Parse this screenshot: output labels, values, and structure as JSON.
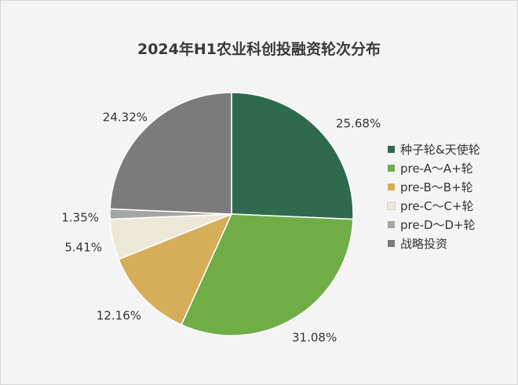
{
  "chart_data": {
    "type": "pie",
    "title": "2024年H1农业科创投融资轮次分布",
    "legend_position": "right",
    "slices": [
      {
        "name": "种子轮&天使轮",
        "value": 25.68,
        "label": "25.68%",
        "color": "#2f6a4f"
      },
      {
        "name": "pre-A～A+轮",
        "value": 31.08,
        "label": "31.08%",
        "color": "#70ad47"
      },
      {
        "name": "pre-B～B+轮",
        "value": 12.16,
        "label": "12.16%",
        "color": "#d6ad59"
      },
      {
        "name": "pre-C～C+轮",
        "value": 5.41,
        "label": "5.41%",
        "color": "#ede9d8"
      },
      {
        "name": "pre-D～D+轮",
        "value": 1.35,
        "label": "1.35%",
        "color": "#a5a5a5"
      },
      {
        "name": "战略投资",
        "value": 24.32,
        "label": "24.32%",
        "color": "#7b7b7b"
      }
    ]
  }
}
